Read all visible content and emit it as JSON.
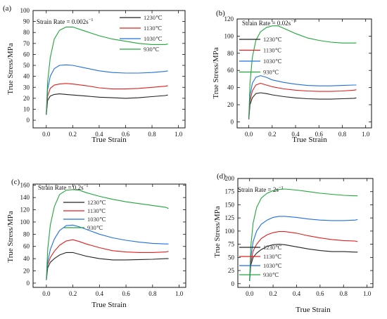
{
  "chart_data": [
    {
      "type": "line",
      "panel_label": "(a)",
      "rate_base": "Strain Rate = 0.002s",
      "rate_exp": "−1",
      "xlabel": "True Strain",
      "ylabel": "True Stress/MPa",
      "xlim": [
        -0.1,
        1.05
      ],
      "ylim": [
        -7,
        100
      ],
      "xticks": [
        "0.0",
        "0.2",
        "0.4",
        "0.6",
        "0.8",
        "1.0"
      ],
      "yticks": [
        "0",
        "10",
        "20",
        "30",
        "40",
        "50",
        "60",
        "70",
        "80",
        "90",
        "100"
      ],
      "xtick_values": [
        0,
        0.2,
        0.4,
        0.6,
        0.8,
        1.0
      ],
      "ytick_values": [
        0,
        10,
        20,
        30,
        40,
        50,
        60,
        70,
        80,
        90,
        100
      ],
      "legend_position": "top-right",
      "series": [
        {
          "name": "1230℃",
          "color": "#222222",
          "x": [
            0,
            0.01,
            0.03,
            0.06,
            0.1,
            0.15,
            0.2,
            0.3,
            0.4,
            0.5,
            0.6,
            0.7,
            0.8,
            0.9,
            0.92
          ],
          "y": [
            5,
            18,
            22,
            23.5,
            24,
            23.5,
            23,
            22,
            21,
            20.5,
            20,
            20.5,
            21.5,
            22.5,
            23
          ]
        },
        {
          "name": "1130℃",
          "color": "#e02020",
          "x": [
            0,
            0.01,
            0.03,
            0.06,
            0.1,
            0.15,
            0.2,
            0.3,
            0.4,
            0.5,
            0.6,
            0.7,
            0.8,
            0.9,
            0.92
          ],
          "y": [
            6,
            22,
            29,
            32,
            33,
            33.5,
            33,
            31.5,
            29.5,
            28.5,
            28.5,
            29,
            30,
            31,
            31.5
          ]
        },
        {
          "name": "1030℃",
          "color": "#1f6fe0",
          "x": [
            0,
            0.01,
            0.03,
            0.06,
            0.1,
            0.15,
            0.2,
            0.3,
            0.4,
            0.5,
            0.6,
            0.7,
            0.8,
            0.9,
            0.92
          ],
          "y": [
            6,
            28,
            40,
            47,
            50,
            50.5,
            50,
            47.5,
            45,
            43.5,
            43,
            43,
            43.5,
            44.5,
            45
          ]
        },
        {
          "name": "930℃",
          "color": "#1fa63a",
          "x": [
            0,
            0.01,
            0.03,
            0.06,
            0.1,
            0.15,
            0.2,
            0.3,
            0.4,
            0.5,
            0.6,
            0.7,
            0.8,
            0.9,
            0.92
          ],
          "y": [
            6,
            35,
            57,
            74,
            82,
            85,
            85,
            81,
            77,
            74,
            72,
            70,
            69,
            69,
            69.5
          ]
        }
      ]
    },
    {
      "type": "line",
      "panel_label": "(b)",
      "rate_base": "Strain Rate = 0.02s",
      "rate_exp": "−1",
      "xlabel": "True Strain",
      "ylabel": "True Stress/MPa",
      "xlim": [
        -0.1,
        1.05
      ],
      "ylim": [
        -7,
        120
      ],
      "xticks": [
        "0.0",
        "0.2",
        "0.4",
        "0.6",
        "0.8",
        "1.0"
      ],
      "yticks": [
        "0",
        "20",
        "40",
        "60",
        "80",
        "100",
        "120"
      ],
      "xtick_values": [
        0,
        0.2,
        0.4,
        0.6,
        0.8,
        1.0
      ],
      "ytick_values": [
        0,
        20,
        40,
        60,
        80,
        100,
        120
      ],
      "legend_position": "top-right",
      "series": [
        {
          "name": "1230℃",
          "color": "#222222",
          "x": [
            0,
            0.01,
            0.03,
            0.06,
            0.1,
            0.15,
            0.2,
            0.3,
            0.4,
            0.5,
            0.6,
            0.7,
            0.8,
            0.9,
            0.92
          ],
          "y": [
            3,
            20,
            28,
            33,
            34,
            33,
            31.5,
            29.5,
            28,
            27,
            26.5,
            26.5,
            27,
            27.5,
            28
          ]
        },
        {
          "name": "1130℃",
          "color": "#e02020",
          "x": [
            0,
            0.01,
            0.03,
            0.06,
            0.1,
            0.15,
            0.2,
            0.3,
            0.4,
            0.5,
            0.6,
            0.7,
            0.8,
            0.9,
            0.92
          ],
          "y": [
            3,
            24,
            36,
            43,
            45,
            43,
            41,
            38.5,
            37,
            36,
            35.5,
            35.5,
            36,
            37,
            37.5
          ]
        },
        {
          "name": "1030℃",
          "color": "#1f6fe0",
          "x": [
            0,
            0.01,
            0.03,
            0.06,
            0.1,
            0.15,
            0.2,
            0.3,
            0.4,
            0.5,
            0.6,
            0.7,
            0.8,
            0.9,
            0.92
          ],
          "y": [
            4,
            30,
            45,
            52,
            54,
            52,
            49,
            46,
            44,
            42.5,
            42,
            42,
            42.5,
            43,
            43
          ]
        },
        {
          "name": "930℃",
          "color": "#1fa63a",
          "x": [
            0,
            0.01,
            0.03,
            0.06,
            0.1,
            0.15,
            0.2,
            0.25,
            0.3,
            0.4,
            0.5,
            0.6,
            0.7,
            0.8,
            0.9,
            0.92
          ],
          "y": [
            4,
            45,
            75,
            95,
            105,
            110,
            112,
            112,
            109,
            103,
            98,
            95,
            93,
            92,
            92,
            92
          ]
        }
      ]
    },
    {
      "type": "line",
      "panel_label": "(c)",
      "rate_base": "Strain Rate = 0.2s",
      "rate_exp": "−1",
      "xlabel": "True Strain",
      "ylabel": "True Stress/MPa",
      "xlim": [
        -0.1,
        1.05
      ],
      "ylim": [
        -7,
        162
      ],
      "xticks": [
        "0.0",
        "0.2",
        "0.4",
        "0.6",
        "0.8",
        "1.0"
      ],
      "yticks": [
        "0",
        "20",
        "40",
        "60",
        "80",
        "100",
        "120",
        "140",
        "160"
      ],
      "xtick_values": [
        0,
        0.2,
        0.4,
        0.6,
        0.8,
        1.0
      ],
      "ytick_values": [
        0,
        20,
        40,
        60,
        80,
        100,
        120,
        140,
        160
      ],
      "legend_position": "top-left",
      "series": [
        {
          "name": "1230℃",
          "color": "#222222",
          "x": [
            0,
            0.01,
            0.03,
            0.06,
            0.1,
            0.15,
            0.2,
            0.25,
            0.3,
            0.4,
            0.5,
            0.6,
            0.7,
            0.8,
            0.9,
            0.92
          ],
          "y": [
            5,
            25,
            34,
            40,
            46,
            50,
            50,
            47,
            44,
            40,
            38,
            38,
            38.5,
            39,
            40,
            40
          ]
        },
        {
          "name": "1130℃",
          "color": "#e02020",
          "x": [
            0,
            0.01,
            0.03,
            0.06,
            0.1,
            0.15,
            0.2,
            0.25,
            0.3,
            0.4,
            0.5,
            0.6,
            0.7,
            0.8,
            0.9,
            0.92
          ],
          "y": [
            5,
            30,
            42,
            52,
            62,
            69,
            71,
            68,
            64,
            58,
            53,
            51,
            50,
            50,
            51,
            52
          ]
        },
        {
          "name": "1030℃",
          "color": "#1f6fe0",
          "x": [
            0,
            0.01,
            0.03,
            0.06,
            0.1,
            0.15,
            0.2,
            0.25,
            0.3,
            0.4,
            0.5,
            0.6,
            0.7,
            0.8,
            0.9,
            0.92
          ],
          "y": [
            5,
            35,
            55,
            72,
            86,
            94,
            95,
            92,
            88,
            80,
            74,
            70,
            67,
            65,
            64,
            64
          ]
        },
        {
          "name": "930℃",
          "color": "#1fa63a",
          "x": [
            0,
            0.01,
            0.03,
            0.06,
            0.1,
            0.15,
            0.2,
            0.25,
            0.3,
            0.4,
            0.5,
            0.6,
            0.7,
            0.8,
            0.9,
            0.92
          ],
          "y": [
            6,
            55,
            95,
            125,
            145,
            152,
            153,
            152,
            148,
            142,
            137,
            133,
            130,
            127,
            124,
            122
          ]
        }
      ]
    },
    {
      "type": "line",
      "panel_label": "(d)",
      "rate_base": "Strain Rate = 2s",
      "rate_exp": "−1",
      "xlabel": "True Strain",
      "ylabel": "True Stress/MPa",
      "xlim": [
        -0.1,
        1.05
      ],
      "ylim": [
        -7,
        200
      ],
      "xticks": [
        "0.0",
        "0.2",
        "0.4",
        "0.6",
        "0.8",
        "1.0"
      ],
      "yticks": [
        "0",
        "25",
        "50",
        "75",
        "100",
        "125",
        "150",
        "175",
        "200"
      ],
      "xtick_values": [
        0,
        0.2,
        0.4,
        0.6,
        0.8,
        1.0
      ],
      "ytick_values": [
        0,
        25,
        50,
        75,
        100,
        125,
        150,
        175,
        200
      ],
      "legend_position": "bottom-left",
      "series": [
        {
          "name": "1230℃",
          "color": "#222222",
          "x": [
            0,
            0.01,
            0.03,
            0.06,
            0.1,
            0.15,
            0.2,
            0.25,
            0.3,
            0.4,
            0.5,
            0.6,
            0.7,
            0.8,
            0.9,
            0.92
          ],
          "y": [
            5,
            35,
            50,
            58,
            65,
            71,
            74,
            75,
            74,
            70,
            66,
            63,
            61,
            61,
            60,
            60
          ]
        },
        {
          "name": "1130℃",
          "color": "#e02020",
          "x": [
            0,
            0.01,
            0.03,
            0.06,
            0.1,
            0.15,
            0.2,
            0.25,
            0.3,
            0.4,
            0.5,
            0.6,
            0.7,
            0.8,
            0.9,
            0.92
          ],
          "y": [
            5,
            40,
            62,
            75,
            86,
            93,
            97,
            99,
            99,
            96,
            91,
            87,
            84,
            82,
            81,
            80
          ]
        },
        {
          "name": "1030℃",
          "color": "#1f6fe0",
          "x": [
            0,
            0.01,
            0.03,
            0.06,
            0.1,
            0.15,
            0.2,
            0.25,
            0.3,
            0.4,
            0.5,
            0.6,
            0.7,
            0.8,
            0.9,
            0.92
          ],
          "y": [
            5,
            50,
            80,
            100,
            113,
            121,
            126,
            128,
            128,
            126,
            123,
            121,
            120,
            120,
            121,
            122
          ]
        },
        {
          "name": "930℃",
          "color": "#1fa63a",
          "x": [
            0,
            0.01,
            0.03,
            0.06,
            0.1,
            0.15,
            0.2,
            0.25,
            0.3,
            0.4,
            0.5,
            0.6,
            0.7,
            0.8,
            0.9,
            0.92
          ],
          "y": [
            5,
            70,
            115,
            145,
            163,
            172,
            177,
            179,
            180,
            178,
            175,
            172,
            170,
            168,
            167,
            167
          ]
        }
      ]
    }
  ]
}
